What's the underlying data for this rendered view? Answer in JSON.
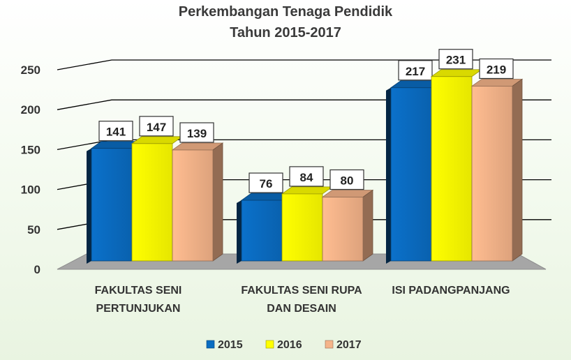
{
  "chart_data": {
    "type": "bar",
    "title": "Perkembangan Tenaga Pendidik",
    "subtitle": "Tahun 2015-2017",
    "categories": [
      [
        "FAKULTAS SENI",
        "PERTUNJUKAN"
      ],
      [
        "FAKULTAS SENI RUPA",
        "DAN DESAIN"
      ],
      [
        "ISI PADANGPANJANG"
      ]
    ],
    "series": [
      {
        "name": "2015",
        "values": [
          141,
          76,
          217
        ],
        "color": "#0a6cc1"
      },
      {
        "name": "2016",
        "values": [
          147,
          84,
          231
        ],
        "color": "#ffff00"
      },
      {
        "name": "2017",
        "values": [
          139,
          80,
          219
        ],
        "color": "#f5b48a"
      }
    ],
    "ylim": [
      0,
      250
    ],
    "yticks": [
      0,
      50,
      100,
      150,
      200,
      250
    ],
    "grid": true,
    "legend_position": "bottom",
    "style": "3d-clustered-bar"
  }
}
